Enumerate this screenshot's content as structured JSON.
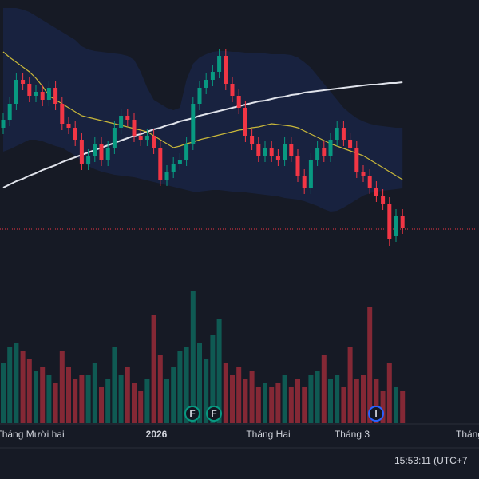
{
  "chart_data": {
    "type": "candlestick",
    "up_color": "#089981",
    "down_color": "#f23645",
    "ylim": [
      0,
      330
    ],
    "open": [
      170,
      180,
      200,
      230,
      225,
      210,
      215,
      205,
      220,
      200,
      175,
      170,
      155,
      125,
      135,
      150,
      130,
      145,
      170,
      185,
      180,
      160,
      155,
      160,
      145,
      105,
      115,
      125,
      130,
      150,
      200,
      220,
      230,
      240,
      260,
      225,
      210,
      195,
      160,
      150,
      135,
      145,
      135,
      130,
      150,
      135,
      110,
      95,
      130,
      145,
      135,
      155,
      170,
      155,
      145,
      115,
      110,
      95,
      85,
      75,
      35,
      60
    ],
    "close": [
      180,
      200,
      230,
      225,
      210,
      215,
      205,
      220,
      200,
      175,
      170,
      155,
      125,
      135,
      150,
      130,
      145,
      170,
      185,
      180,
      160,
      155,
      160,
      145,
      105,
      115,
      125,
      130,
      150,
      200,
      220,
      230,
      240,
      260,
      225,
      210,
      195,
      160,
      150,
      135,
      145,
      135,
      130,
      150,
      135,
      110,
      95,
      130,
      145,
      135,
      155,
      170,
      155,
      145,
      115,
      110,
      95,
      85,
      75,
      30,
      60,
      45
    ],
    "high": [
      188,
      208,
      238,
      238,
      233,
      223,
      223,
      228,
      228,
      208,
      183,
      178,
      163,
      143,
      158,
      158,
      153,
      178,
      193,
      193,
      188,
      168,
      168,
      168,
      153,
      123,
      133,
      138,
      158,
      208,
      228,
      238,
      248,
      268,
      268,
      233,
      218,
      203,
      168,
      158,
      153,
      153,
      143,
      158,
      158,
      143,
      118,
      138,
      153,
      153,
      163,
      178,
      178,
      163,
      153,
      123,
      118,
      103,
      93,
      83,
      68,
      68
    ],
    "low": [
      162,
      172,
      192,
      217,
      202,
      202,
      197,
      197,
      192,
      167,
      162,
      147,
      117,
      117,
      127,
      122,
      122,
      137,
      162,
      172,
      152,
      147,
      147,
      137,
      97,
      97,
      107,
      117,
      122,
      142,
      192,
      212,
      222,
      232,
      217,
      202,
      187,
      152,
      142,
      127,
      127,
      127,
      122,
      122,
      127,
      102,
      87,
      87,
      122,
      127,
      127,
      147,
      147,
      137,
      107,
      102,
      87,
      77,
      67,
      22,
      27,
      37
    ],
    "price_line": 43,
    "overlays": [
      {
        "name": "MA200",
        "color": "#e0e3eb",
        "values": [
          95,
          99,
          103,
          106,
          110,
          113,
          117,
          120,
          123,
          127,
          130,
          133,
          136,
          139,
          142,
          145,
          148,
          151,
          154,
          157,
          160,
          162,
          165,
          168,
          170,
          173,
          175,
          178,
          180,
          182,
          185,
          187,
          189,
          191,
          193,
          195,
          197,
          199,
          201,
          203,
          204,
          206,
          208,
          209,
          211,
          212,
          214,
          215,
          216,
          217,
          218,
          219,
          220,
          221,
          222,
          223,
          224,
          224,
          225,
          226,
          226,
          227
        ]
      },
      {
        "name": "MA20",
        "color": "#c9b83a",
        "values": [
          265,
          258,
          252,
          246,
          240,
          232,
          222,
          210,
          205,
          200,
          195,
          190,
          185,
          183,
          181,
          179,
          177,
          175,
          173,
          171,
          169,
          167,
          165,
          160,
          155,
          150,
          145,
          147,
          150,
          152,
          155,
          157,
          159,
          161,
          163,
          165,
          167,
          168,
          170,
          171,
          173,
          175,
          174,
          173,
          172,
          170,
          166,
          162,
          158,
          154,
          150,
          147,
          144,
          141,
          138,
          135,
          130,
          125,
          120,
          115,
          110,
          105
        ]
      }
    ],
    "band_upper": [
      320,
      320,
      320,
      318,
      315,
      310,
      305,
      300,
      295,
      290,
      285,
      280,
      272,
      268,
      266,
      265,
      264,
      263,
      262,
      260,
      255,
      240,
      220,
      205,
      200,
      195,
      192,
      195,
      230,
      250,
      258,
      262,
      265,
      266,
      266,
      265,
      265,
      264,
      264,
      263,
      263,
      262,
      262,
      262,
      261,
      258,
      252,
      245,
      235,
      225,
      215,
      205,
      195,
      188,
      182,
      178,
      175,
      173,
      172,
      171,
      170,
      170
    ],
    "band_lower": [
      140,
      143,
      147,
      151,
      155,
      155,
      153,
      150,
      147,
      145,
      140,
      135,
      128,
      122,
      118,
      115,
      113,
      111,
      110,
      109,
      108,
      106,
      104,
      102,
      100,
      98,
      96,
      94,
      92,
      90,
      90,
      91,
      92,
      92,
      91,
      90,
      90,
      89,
      88,
      87,
      86,
      85,
      84,
      82,
      81,
      80,
      78,
      75,
      72,
      68,
      65,
      66,
      70,
      75,
      80,
      85,
      88,
      90,
      91,
      92,
      93,
      94
    ],
    "volume_ylim": [
      0,
      200
    ],
    "volume": [
      75,
      95,
      100,
      90,
      80,
      65,
      70,
      60,
      50,
      90,
      70,
      55,
      60,
      60,
      75,
      45,
      55,
      95,
      60,
      70,
      50,
      40,
      55,
      135,
      85,
      55,
      70,
      90,
      95,
      165,
      100,
      80,
      110,
      130,
      75,
      60,
      70,
      55,
      65,
      45,
      50,
      45,
      50,
      60,
      45,
      55,
      45,
      60,
      65,
      85,
      55,
      60,
      45,
      95,
      55,
      60,
      145,
      55,
      40,
      75,
      45,
      40
    ]
  },
  "axis_labels": [
    "Tháng Mười hai",
    "2026",
    "Tháng Hai",
    "Tháng 3",
    "Tháng"
  ],
  "events": [
    "F",
    "F",
    "I"
  ],
  "clock": "15:53:11 (UTC+7"
}
